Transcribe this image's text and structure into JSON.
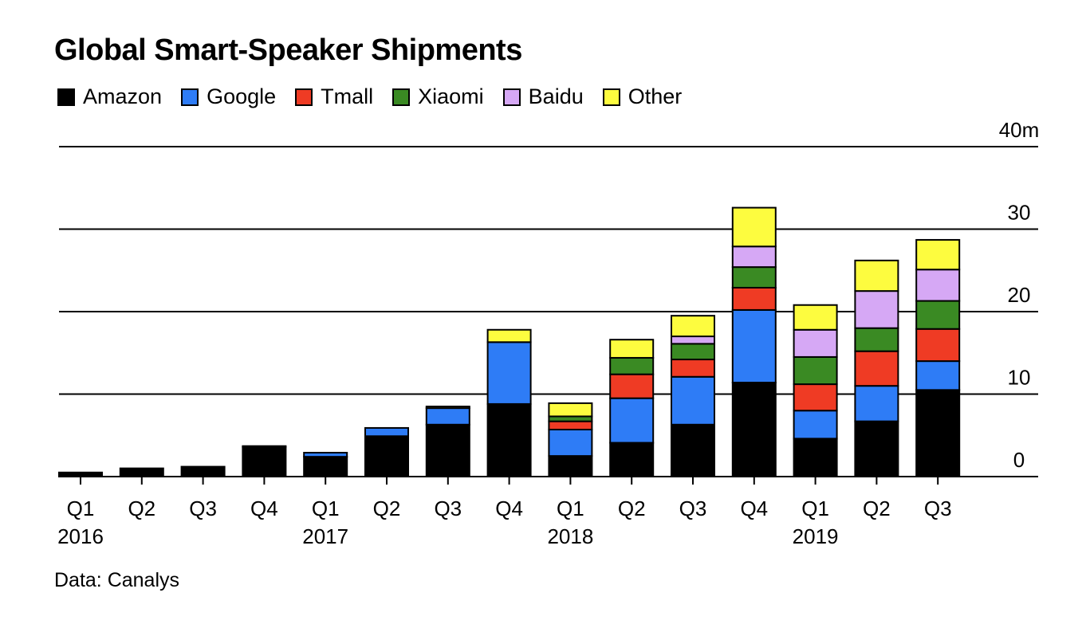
{
  "chart_data": {
    "type": "bar",
    "stacked": true,
    "title": "Global Smart-Speaker Shipments",
    "source": "Data: Canalys",
    "unit": "m",
    "ylim": [
      0,
      40
    ],
    "yticks": [
      0,
      10,
      20,
      30,
      40
    ],
    "ytick_labels": [
      "0",
      "10",
      "20",
      "30",
      "40m"
    ],
    "grid": true,
    "legend_position": "top-left",
    "categories": [
      "Q1",
      "Q2",
      "Q3",
      "Q4",
      "Q1",
      "Q2",
      "Q3",
      "Q4",
      "Q1",
      "Q2",
      "Q3",
      "Q4",
      "Q1",
      "Q2",
      "Q3"
    ],
    "years": [
      {
        "label": "2016",
        "index": 0
      },
      {
        "label": "2017",
        "index": 4
      },
      {
        "label": "2018",
        "index": 8
      },
      {
        "label": "2019",
        "index": 12
      }
    ],
    "series": [
      {
        "name": "Amazon",
        "color": "#000000",
        "values": [
          0.5,
          1.0,
          1.2,
          3.6,
          2.4,
          4.9,
          6.3,
          8.8,
          2.5,
          4.1,
          6.3,
          11.4,
          4.6,
          6.7,
          10.5
        ]
      },
      {
        "name": "Google",
        "color": "#2e7cf6",
        "values": [
          0,
          0,
          0,
          0.1,
          0.5,
          1.0,
          2.0,
          7.5,
          3.2,
          5.4,
          5.8,
          8.8,
          3.4,
          4.3,
          3.5
        ]
      },
      {
        "name": "Tmall",
        "color": "#ef3b24",
        "values": [
          0,
          0,
          0,
          0,
          0,
          0,
          0,
          0,
          1.0,
          2.9,
          2.1,
          2.7,
          3.2,
          4.2,
          3.9
        ]
      },
      {
        "name": "Xiaomi",
        "color": "#3a8a23",
        "values": [
          0,
          0,
          0,
          0,
          0,
          0,
          0,
          0,
          0.6,
          2.0,
          1.9,
          2.5,
          3.3,
          2.8,
          3.4
        ]
      },
      {
        "name": "Baidu",
        "color": "#d6a8f5",
        "values": [
          0,
          0,
          0,
          0,
          0,
          0,
          0,
          0,
          0,
          0,
          0.9,
          2.5,
          3.3,
          4.5,
          3.8
        ]
      },
      {
        "name": "Other",
        "color": "#fdfc3f",
        "values": [
          0,
          0,
          0,
          0,
          0,
          0,
          0.2,
          1.5,
          1.6,
          2.2,
          2.5,
          4.7,
          3.0,
          3.7,
          3.6
        ]
      }
    ]
  }
}
